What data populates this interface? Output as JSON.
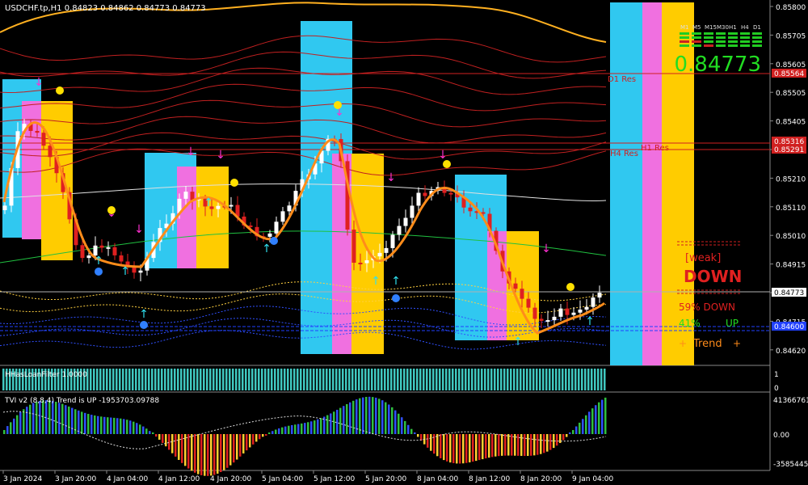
{
  "header": {
    "symbol_info": "USDCHF.tp,H1  0.84823 0.84862 0.84773 0.84773"
  },
  "price_axis": [
    "0.85800",
    "0.85705",
    "0.85605",
    "0.85505",
    "0.85405",
    "0.85305",
    "0.85210",
    "0.85110",
    "0.85010",
    "0.84915",
    "0.84815",
    "0.84715",
    "0.84620"
  ],
  "price_tags": {
    "d1_res": "0.85564",
    "h1_res_top": "0.85316",
    "h4_res": "0.85291",
    "current": "0.84773",
    "support": "0.84600"
  },
  "level_labels": {
    "d1_res": "D1 Res",
    "h1_res": "H1 Res",
    "h4_res": "H4 Res"
  },
  "timeframe_panel": {
    "labels": [
      "M1",
      "M5",
      "M15",
      "M30",
      "H1",
      "H4",
      "D1"
    ],
    "price": "0.84773",
    "colors": {
      "up": "#22cc22",
      "down": "#cc2222"
    }
  },
  "signals": {
    "strength": "[weak]",
    "direction": "DOWN",
    "pct_down": "59% DOWN",
    "pct_up_value": "41%",
    "pct_up_label": "UP",
    "trend_left": "+",
    "trend_label": "Trend",
    "trend_right": "+"
  },
  "hmm_panel": {
    "label": "HHasLoanFilter 1.0000",
    "axis": [
      "1",
      "0"
    ],
    "color": "#40c8c0"
  },
  "tvi_panel": {
    "label": "TVI v2 (8,8,4)  Trend is UP  -1953703.09788",
    "axis": [
      "41366761",
      "0.00",
      "-35854453"
    ]
  },
  "time_axis": [
    "3 Jan 2024",
    "3 Jan 20:00",
    "4 Jan 04:00",
    "4 Jan 12:00",
    "4 Jan 20:00",
    "5 Jan 04:00",
    "5 Jan 12:00",
    "5 Jan 20:00",
    "8 Jan 04:00",
    "8 Jan 12:00",
    "8 Jan 20:00",
    "9 Jan 04:00"
  ],
  "colors": {
    "bull_candle": "#ffffff",
    "bear_candle": "#e02020",
    "zone_cyan": "#30c8f0",
    "zone_pink": "#f070e0",
    "zone_yellow": "#ffcc00",
    "ma_orange": "#ff8c1a",
    "ma_blue": "#4060e0"
  },
  "sidebar_bands": [
    "cyan",
    "pink",
    "yellow"
  ]
}
